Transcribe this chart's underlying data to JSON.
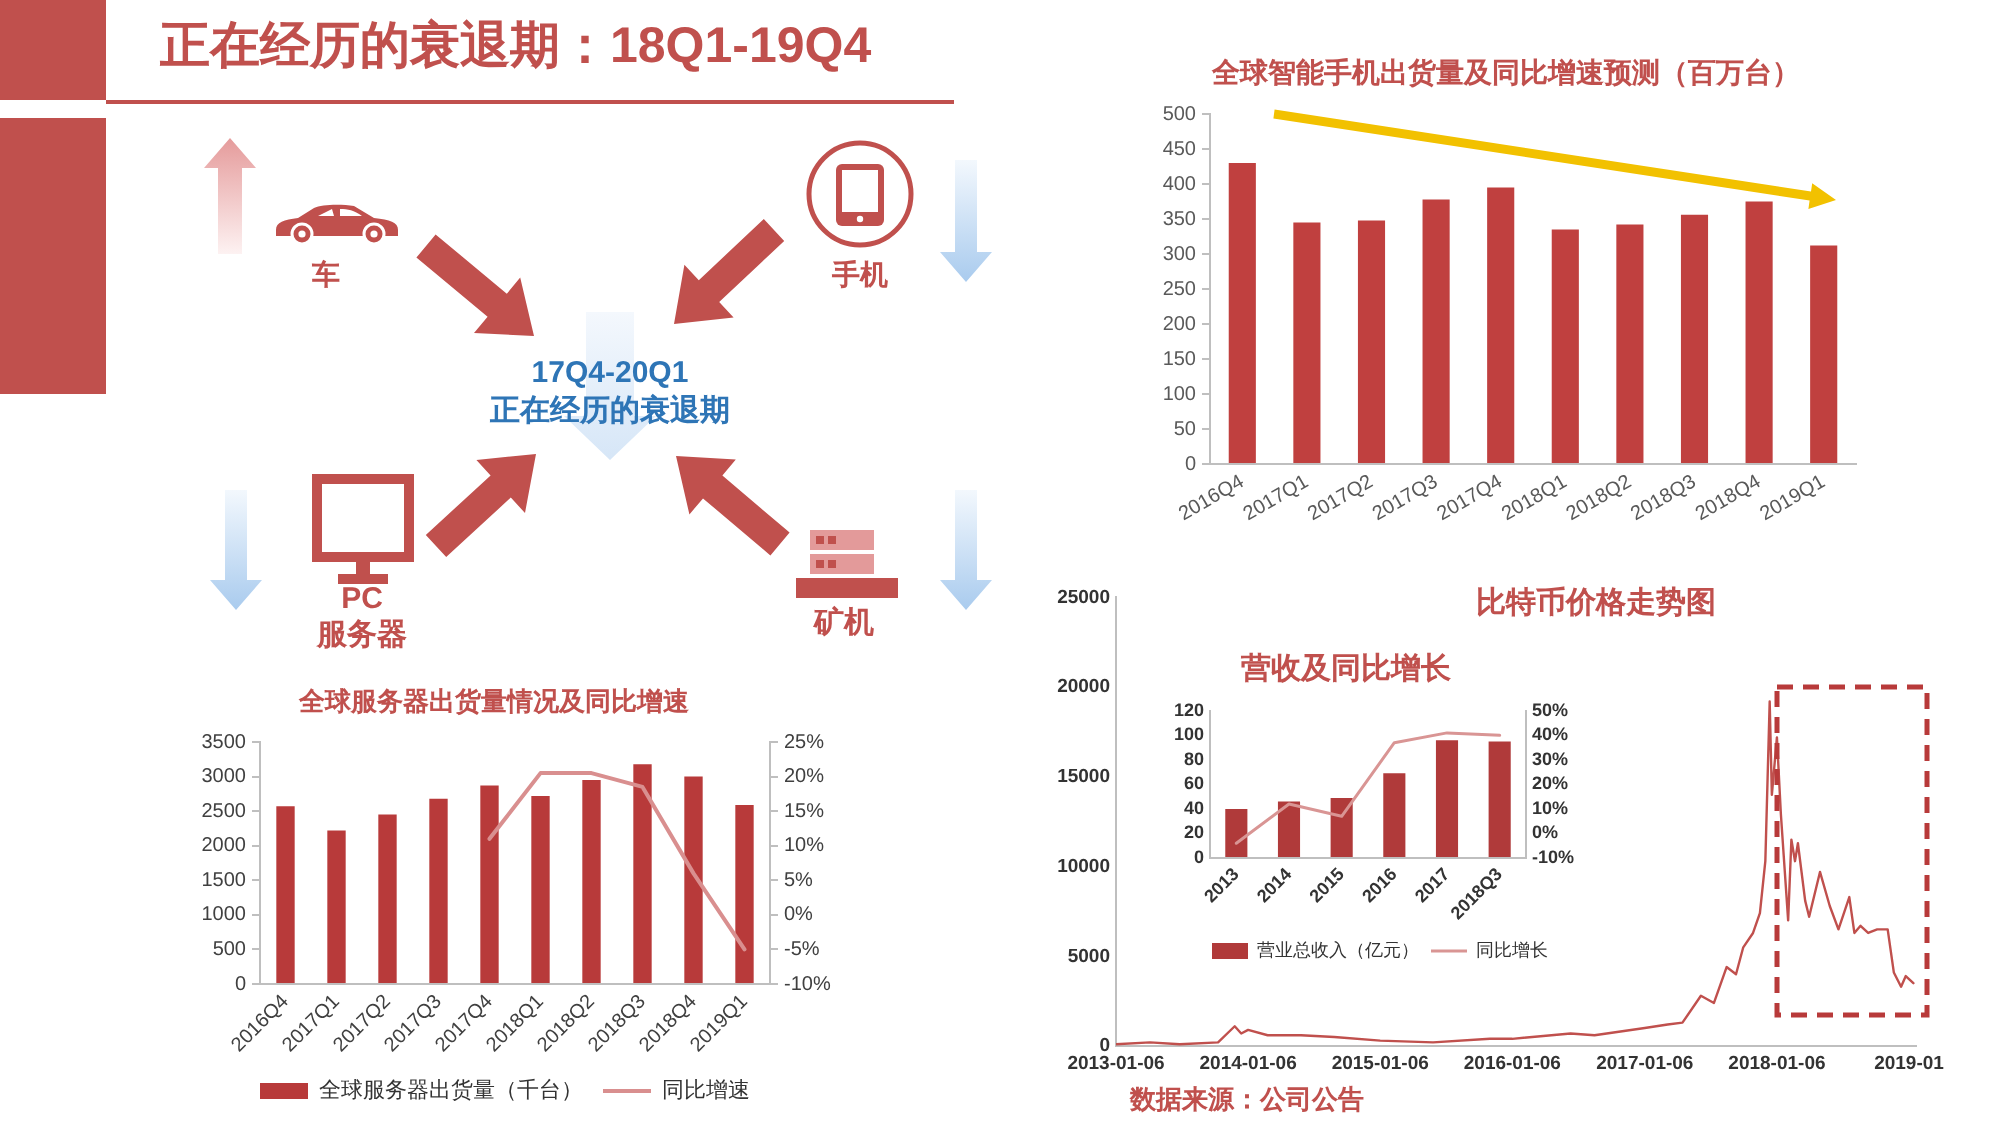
{
  "chart_data": [
    {
      "type": "other",
      "title": "正在经历的衰退期：18Q1-19Q4",
      "annotations": [
        "车",
        "手机",
        "17Q4-20Q1",
        "正在经历的衰退期",
        "PC",
        "服务器",
        "矿机"
      ]
    },
    {
      "type": "bar",
      "title": "全球智能手机出货量及同比增速预测（百万台）",
      "categories": [
        "2016Q4",
        "2017Q1",
        "2017Q2",
        "2017Q3",
        "2017Q4",
        "2018Q1",
        "2018Q2",
        "2018Q3",
        "2018Q4",
        "2019Q1"
      ],
      "values": [
        430,
        345,
        348,
        378,
        395,
        335,
        342,
        356,
        375,
        312
      ],
      "color": "#c0403f",
      "ylim": [
        0,
        500
      ],
      "yticks": [
        0,
        50,
        100,
        150,
        200,
        250,
        300,
        350,
        400,
        450,
        500
      ]
    },
    {
      "type": "bar",
      "title": "全球服务器出货量情况及同比增速",
      "categories": [
        "2016Q4",
        "2017Q1",
        "2017Q2",
        "2017Q3",
        "2017Q4",
        "2018Q1",
        "2018Q2",
        "2018Q3",
        "2018Q4",
        "2019Q1"
      ],
      "series": [
        {
          "name": "全球服务器出货量（千台）",
          "type": "bar",
          "color": "#b83a3a",
          "values": [
            2570,
            2220,
            2450,
            2680,
            2870,
            2720,
            2950,
            3180,
            3000,
            2590
          ]
        },
        {
          "name": "同比增速",
          "type": "line",
          "axis": "y2",
          "color": "#d98f8f",
          "values": [
            null,
            null,
            null,
            null,
            11,
            20.5,
            20.5,
            18.5,
            6,
            -5
          ]
        }
      ],
      "ylim": [
        0,
        3500
      ],
      "yticks": [
        0,
        500,
        1000,
        1500,
        2000,
        2500,
        3000,
        3500
      ],
      "y2lim": [
        -10,
        25
      ],
      "y2ticks": [
        {
          "value": -10,
          "label": "-10%"
        },
        {
          "value": -5,
          "label": "-5%"
        },
        {
          "value": 0,
          "label": "0%"
        },
        {
          "value": 5,
          "label": "5%"
        },
        {
          "value": 10,
          "label": "10%"
        },
        {
          "value": 15,
          "label": "15%"
        },
        {
          "value": 20,
          "label": "20%"
        },
        {
          "value": 25,
          "label": "25%"
        }
      ],
      "legend": "bottom",
      "marker": "none"
    },
    {
      "type": "line",
      "title": "比特币价格走势图",
      "x": [
        "2013-01-06",
        "2013-04-10",
        "2013-07-01",
        "2013-10-15",
        "2013-11-30",
        "2013-12-18",
        "2014-01-06",
        "2014-03-01",
        "2014-06-01",
        "2014-09-01",
        "2015-01-06",
        "2015-06-01",
        "2015-11-05",
        "2016-01-06",
        "2016-06-15",
        "2016-08-20",
        "2017-01-06",
        "2017-03-10",
        "2017-04-20",
        "2017-06-10",
        "2017-07-16",
        "2017-08-20",
        "2017-09-15",
        "2017-10-05",
        "2017-11-01",
        "2017-11-20",
        "2017-12-05",
        "2017-12-17",
        "2017-12-23",
        "2018-01-06",
        "2018-01-17",
        "2018-02-06",
        "2018-02-15",
        "2018-02-25",
        "2018-03-05",
        "2018-03-25",
        "2018-04-05",
        "2018-05-05",
        "2018-06-01",
        "2018-06-25",
        "2018-07-25",
        "2018-08-08",
        "2018-08-25",
        "2018-09-15",
        "2018-10-10",
        "2018-11-08",
        "2018-11-25",
        "2018-12-15",
        "2018-12-28",
        "2019-01-18"
      ],
      "values": [
        100,
        200,
        100,
        200,
        1100,
        700,
        900,
        600,
        600,
        500,
        300,
        200,
        400,
        400,
        700,
        600,
        1000,
        1200,
        1300,
        2800,
        2400,
        4400,
        4000,
        5500,
        6300,
        7400,
        10300,
        19200,
        14000,
        17200,
        12900,
        7000,
        11500,
        10300,
        11300,
        8100,
        7200,
        9700,
        7800,
        6500,
        8300,
        6300,
        6700,
        6300,
        6500,
        6500,
        4100,
        3300,
        3900,
        3500
      ],
      "color": "#c0504d",
      "xlim": [
        "2013-01-06",
        "2019-01-25"
      ],
      "xticks": [
        "2013-01-06",
        "2014-01-06",
        "2015-01-06",
        "2016-01-06",
        "2017-01-06",
        "2018-01-06",
        {
          "value": "2019-01-06",
          "label": "2019-01"
        }
      ],
      "ylim": [
        0,
        25000
      ],
      "yticks": [
        0,
        5000,
        10000,
        15000,
        20000,
        25000
      ],
      "annotations": [
        "数据来源：公司公告"
      ],
      "marker": "none"
    },
    {
      "type": "bar",
      "title": "营收及同比增长",
      "categories": [
        "2013",
        "2014",
        "2015",
        "2016",
        "2017",
        "2018Q3"
      ],
      "series": [
        {
          "name": "营业总收入（亿元）",
          "type": "bar",
          "color": "#b03a3a",
          "values": [
            40,
            46,
            49,
            69,
            96,
            95
          ]
        },
        {
          "name": "同比增长",
          "type": "line",
          "axis": "y2",
          "color": "#d99594",
          "values": [
            -4,
            12,
            7,
            37,
            41,
            40
          ]
        }
      ],
      "ylim": [
        0,
        120
      ],
      "yticks": [
        0,
        20,
        40,
        60,
        80,
        100,
        120
      ],
      "y2lim": [
        -10,
        50
      ],
      "y2ticks": [
        {
          "value": -10,
          "label": "-10%"
        },
        {
          "value": 0,
          "label": "0%"
        },
        {
          "value": 10,
          "label": "10%"
        },
        {
          "value": 20,
          "label": "20%"
        },
        {
          "value": 30,
          "label": "30%"
        },
        {
          "value": 40,
          "label": "40%"
        },
        {
          "value": 50,
          "label": "50%"
        }
      ],
      "legend": "bottom",
      "marker": "none"
    }
  ]
}
